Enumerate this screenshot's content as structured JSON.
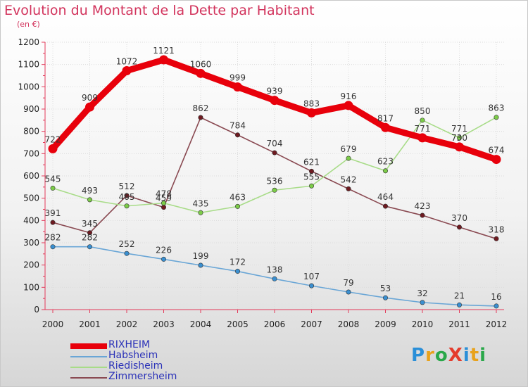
{
  "header": {
    "title": "Evolution du Montant de la Dette par Habitant",
    "subtitle": "(en €)"
  },
  "brand": {
    "text": "ProXiti",
    "letters": [
      {
        "ch": "P",
        "color": "#2a8fd8"
      },
      {
        "ch": "r",
        "color": "#e8a21c"
      },
      {
        "ch": "o",
        "color": "#2aa84a"
      },
      {
        "ch": "X",
        "color": "#e43b2c"
      },
      {
        "ch": "i",
        "color": "#2a8fd8"
      },
      {
        "ch": "t",
        "color": "#e8a21c"
      },
      {
        "ch": "i",
        "color": "#2aa84a"
      }
    ]
  },
  "chart_data": {
    "type": "line",
    "title": "Evolution du Montant de la Dette par Habitant",
    "subtitle": "(en €)",
    "x": [
      "2000",
      "2001",
      "2002",
      "2003",
      "2004",
      "2005",
      "2006",
      "2007",
      "2008",
      "2009",
      "2010",
      "2011",
      "2012"
    ],
    "ylim": [
      0,
      1200
    ],
    "yticks": [
      0,
      100,
      200,
      300,
      400,
      500,
      600,
      700,
      800,
      900,
      1000,
      1100,
      1200
    ],
    "grid": true,
    "legend_position": "bottom-left",
    "series": [
      {
        "name": "RIXHEIM",
        "color": "#e8000b",
        "marker": "#e8000b",
        "line_weight": "heavy",
        "values": [
          722,
          909,
          1072,
          1121,
          1060,
          999,
          939,
          883,
          916,
          817,
          771,
          730,
          674
        ]
      },
      {
        "name": "Habsheim",
        "color": "#6aa6d6",
        "marker": "#3a8fd0",
        "line_weight": "thin",
        "values": [
          282,
          282,
          252,
          226,
          199,
          172,
          138,
          107,
          79,
          53,
          32,
          21,
          16
        ]
      },
      {
        "name": "Riedisheim",
        "color": "#a8dc88",
        "marker": "#7ccc48",
        "line_weight": "thin",
        "values": [
          545,
          493,
          465,
          478,
          435,
          463,
          536,
          555,
          679,
          623,
          850,
          771,
          863
        ]
      },
      {
        "name": "Zimmersheim",
        "color": "#8a4a52",
        "marker": "#6e1a20",
        "line_weight": "thin",
        "values": [
          391,
          345,
          512,
          459,
          862,
          784,
          704,
          621,
          542,
          464,
          423,
          370,
          318
        ]
      }
    ]
  }
}
